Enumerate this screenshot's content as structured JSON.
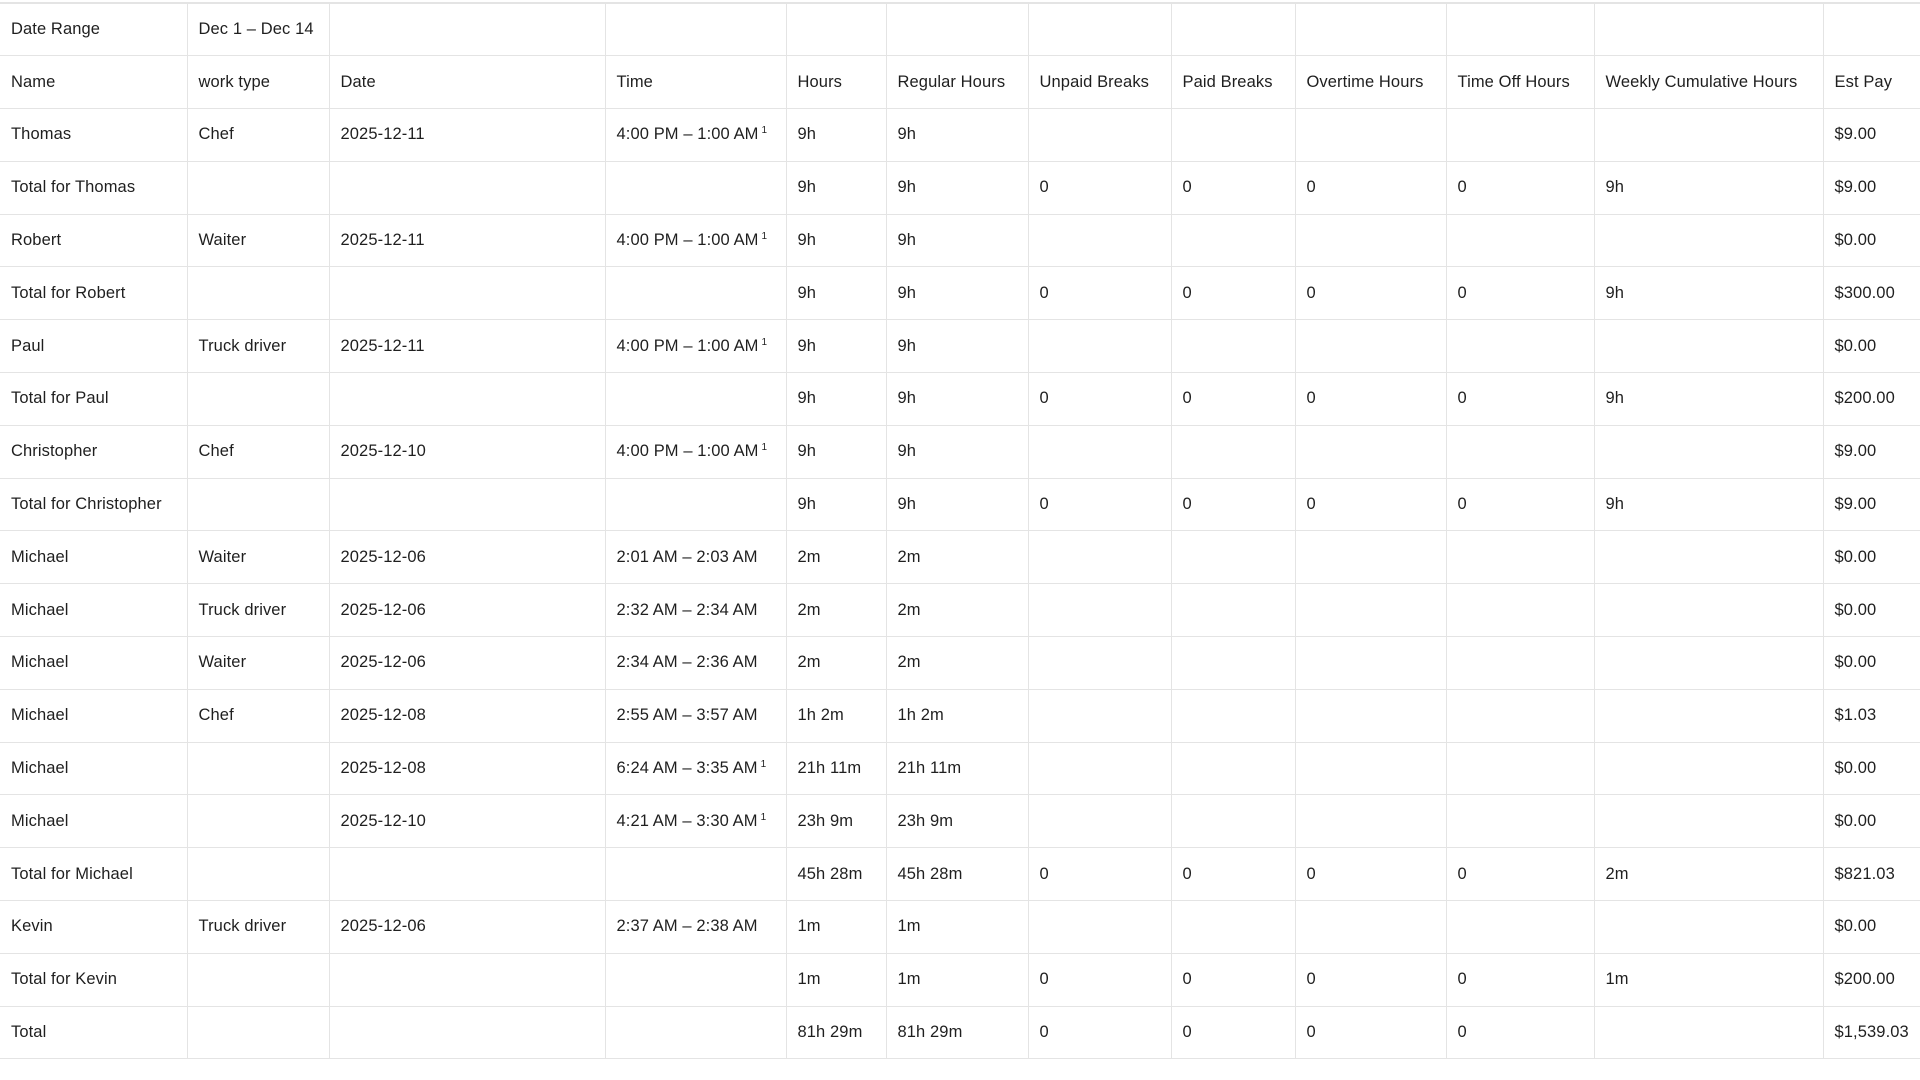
{
  "date_range": {
    "label": "Date Range",
    "value": "Dec 1 – Dec 14"
  },
  "columns": [
    "Name",
    "work type",
    "Date",
    "Time",
    "Hours",
    "Regular Hours",
    "Unpaid Breaks",
    "Paid Breaks",
    "Overtime Hours",
    "Time Off Hours",
    "Weekly Cumulative Hours",
    "Est Pay"
  ],
  "rows": [
    {
      "name": "Thomas",
      "work_type": "Chef",
      "date": "2025-12-11",
      "time": "4:00 PM – 1:00 AM",
      "time_mark": "1",
      "hours": "9h",
      "regular": "9h",
      "unpaid": "",
      "paid": "",
      "overtime": "",
      "timeoff": "",
      "weekly": "",
      "pay": "$9.00"
    },
    {
      "name": "Total for Thomas",
      "work_type": "",
      "date": "",
      "time": "",
      "time_mark": "",
      "hours": "9h",
      "regular": "9h",
      "unpaid": "0",
      "paid": "0",
      "overtime": "0",
      "timeoff": "0",
      "weekly": "9h",
      "pay": "$9.00"
    },
    {
      "name": "Robert",
      "work_type": "Waiter",
      "date": "2025-12-11",
      "time": "4:00 PM – 1:00 AM",
      "time_mark": "1",
      "hours": "9h",
      "regular": "9h",
      "unpaid": "",
      "paid": "",
      "overtime": "",
      "timeoff": "",
      "weekly": "",
      "pay": "$0.00"
    },
    {
      "name": "Total for Robert",
      "work_type": "",
      "date": "",
      "time": "",
      "time_mark": "",
      "hours": "9h",
      "regular": "9h",
      "unpaid": "0",
      "paid": "0",
      "overtime": "0",
      "timeoff": "0",
      "weekly": "9h",
      "pay": "$300.00"
    },
    {
      "name": "Paul",
      "work_type": "Truck driver",
      "date": "2025-12-11",
      "time": "4:00 PM – 1:00 AM",
      "time_mark": "1",
      "hours": "9h",
      "regular": "9h",
      "unpaid": "",
      "paid": "",
      "overtime": "",
      "timeoff": "",
      "weekly": "",
      "pay": "$0.00"
    },
    {
      "name": "Total for Paul",
      "work_type": "",
      "date": "",
      "time": "",
      "time_mark": "",
      "hours": "9h",
      "regular": "9h",
      "unpaid": "0",
      "paid": "0",
      "overtime": "0",
      "timeoff": "0",
      "weekly": "9h",
      "pay": "$200.00"
    },
    {
      "name": "Christopher",
      "work_type": "Chef",
      "date": "2025-12-10",
      "time": "4:00 PM – 1:00 AM",
      "time_mark": "1",
      "hours": "9h",
      "regular": "9h",
      "unpaid": "",
      "paid": "",
      "overtime": "",
      "timeoff": "",
      "weekly": "",
      "pay": "$9.00"
    },
    {
      "name": "Total for Christopher",
      "work_type": "",
      "date": "",
      "time": "",
      "time_mark": "",
      "hours": "9h",
      "regular": "9h",
      "unpaid": "0",
      "paid": "0",
      "overtime": "0",
      "timeoff": "0",
      "weekly": "9h",
      "pay": "$9.00"
    },
    {
      "name": "Michael",
      "work_type": "Waiter",
      "date": "2025-12-06",
      "time": "2:01 AM – 2:03 AM",
      "time_mark": "",
      "hours": "2m",
      "regular": "2m",
      "unpaid": "",
      "paid": "",
      "overtime": "",
      "timeoff": "",
      "weekly": "",
      "pay": "$0.00"
    },
    {
      "name": "Michael",
      "work_type": "Truck driver",
      "date": "2025-12-06",
      "time": "2:32 AM – 2:34 AM",
      "time_mark": "",
      "hours": "2m",
      "regular": "2m",
      "unpaid": "",
      "paid": "",
      "overtime": "",
      "timeoff": "",
      "weekly": "",
      "pay": "$0.00"
    },
    {
      "name": "Michael",
      "work_type": "Waiter",
      "date": "2025-12-06",
      "time": "2:34 AM – 2:36 AM",
      "time_mark": "",
      "hours": "2m",
      "regular": "2m",
      "unpaid": "",
      "paid": "",
      "overtime": "",
      "timeoff": "",
      "weekly": "",
      "pay": "$0.00"
    },
    {
      "name": "Michael",
      "work_type": "Chef",
      "date": "2025-12-08",
      "time": "2:55 AM – 3:57 AM",
      "time_mark": "",
      "hours": "1h 2m",
      "regular": "1h 2m",
      "unpaid": "",
      "paid": "",
      "overtime": "",
      "timeoff": "",
      "weekly": "",
      "pay": "$1.03"
    },
    {
      "name": "Michael",
      "work_type": "",
      "date": "2025-12-08",
      "time": "6:24 AM – 3:35 AM",
      "time_mark": "1",
      "hours": "21h 11m",
      "regular": "21h 11m",
      "unpaid": "",
      "paid": "",
      "overtime": "",
      "timeoff": "",
      "weekly": "",
      "pay": "$0.00"
    },
    {
      "name": "Michael",
      "work_type": "",
      "date": "2025-12-10",
      "time": "4:21 AM – 3:30 AM",
      "time_mark": "1",
      "hours": "23h 9m",
      "regular": "23h 9m",
      "unpaid": "",
      "paid": "",
      "overtime": "",
      "timeoff": "",
      "weekly": "",
      "pay": "$0.00"
    },
    {
      "name": "Total for Michael",
      "work_type": "",
      "date": "",
      "time": "",
      "time_mark": "",
      "hours": "45h 28m",
      "regular": "45h 28m",
      "unpaid": "0",
      "paid": "0",
      "overtime": "0",
      "timeoff": "0",
      "weekly": "2m",
      "pay": "$821.03"
    },
    {
      "name": "Kevin",
      "work_type": "Truck driver",
      "date": "2025-12-06",
      "time": "2:37 AM – 2:38 AM",
      "time_mark": "",
      "hours": "1m",
      "regular": "1m",
      "unpaid": "",
      "paid": "",
      "overtime": "",
      "timeoff": "",
      "weekly": "",
      "pay": "$0.00"
    },
    {
      "name": "Total for Kevin",
      "work_type": "",
      "date": "",
      "time": "",
      "time_mark": "",
      "hours": "1m",
      "regular": "1m",
      "unpaid": "0",
      "paid": "0",
      "overtime": "0",
      "timeoff": "0",
      "weekly": "1m",
      "pay": "$200.00"
    },
    {
      "name": "Total",
      "work_type": "",
      "date": "",
      "time": "",
      "time_mark": "",
      "hours": "81h 29m",
      "regular": "81h 29m",
      "unpaid": "0",
      "paid": "0",
      "overtime": "0",
      "timeoff": "0",
      "weekly": "",
      "pay": "$1,539.03"
    }
  ]
}
